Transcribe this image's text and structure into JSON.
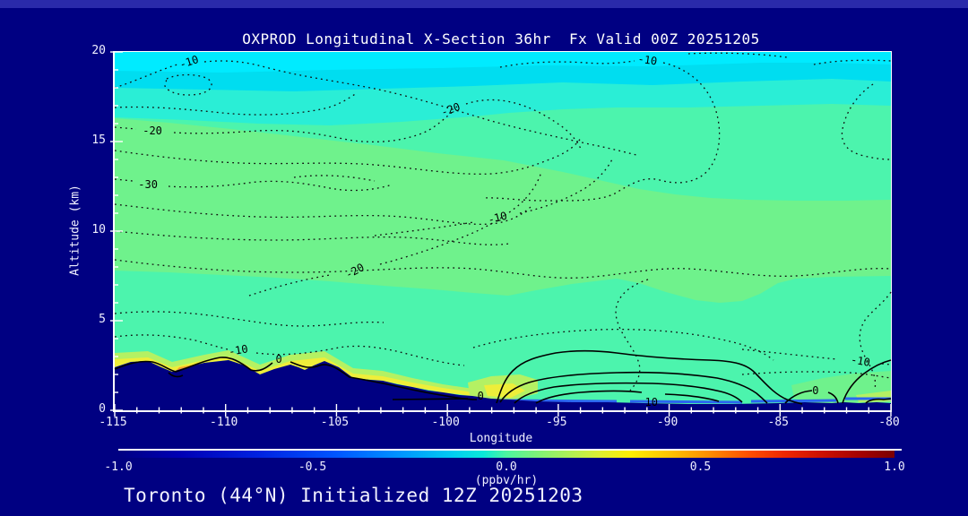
{
  "window": {
    "background": "#000082",
    "top_strip_color": "#2a2aaa"
  },
  "title": "OXPROD Longitudinal X-Section 36hr  Fx Valid 00Z 20251205",
  "annotation": "Toronto (44°N) Initialized 12Z 20251203",
  "axes": {
    "x": {
      "label": "Longitude",
      "range": [
        -115,
        -80
      ],
      "major_ticks": [
        -115,
        -110,
        -105,
        -100,
        -95,
        -90,
        -85,
        -80
      ],
      "minor_step": 1
    },
    "y": {
      "label": "Altitude (km)",
      "range": [
        0,
        20
      ],
      "major_ticks": [
        0,
        5,
        10,
        15,
        20
      ],
      "minor_step": 1
    }
  },
  "colorbar": {
    "units_label": "(ppbv/hr)",
    "range": [
      -1.0,
      1.0
    ],
    "ticks": [
      "-1.0",
      "-0.5",
      "0.0",
      "0.5",
      "1.0"
    ],
    "gradient": [
      [
        "0%",
        "#000082"
      ],
      [
        "8%",
        "#0000b4"
      ],
      [
        "18%",
        "#0022e0"
      ],
      [
        "28%",
        "#0055ff"
      ],
      [
        "36%",
        "#0092ff"
      ],
      [
        "43%",
        "#00ccf2"
      ],
      [
        "47%",
        "#09e9d9"
      ],
      [
        "50%",
        "#4cf4a0"
      ],
      [
        "54%",
        "#7ef278"
      ],
      [
        "58%",
        "#aef056"
      ],
      [
        "62%",
        "#ddee32"
      ],
      [
        "66%",
        "#ffee00"
      ],
      [
        "71%",
        "#ffc300"
      ],
      [
        "76%",
        "#ff8e00"
      ],
      [
        "81%",
        "#ff5100"
      ],
      [
        "86%",
        "#ed2600"
      ],
      [
        "91%",
        "#c90e00"
      ],
      [
        "96%",
        "#a00000"
      ],
      [
        "100%",
        "#7a0000"
      ]
    ]
  },
  "palette": {
    "navy": "#000082",
    "cyan_bright": "#00ebff",
    "cyan": "#00ddf0",
    "cyan_turquoise": "#2aeed6",
    "springgreen": "#4cf4ad",
    "green": "#6ff28c",
    "yellowgreen": "#b4f163",
    "yellow": "#eeee3a",
    "orange": "#f4a22a",
    "blue_strip": "#2b66f0",
    "contour_line": "#000000",
    "axis": "#ffffff",
    "text": "#f0f0ff"
  },
  "chart_data": {
    "type": "heatmap",
    "subtype": "filled-contour longitudinal cross-section",
    "title": "OXPROD Longitudinal X-Section 36hr  Fx Valid 00Z 20251205",
    "xlabel": "Longitude",
    "ylabel": "Altitude (km)",
    "xlim": [
      -115,
      -80
    ],
    "ylim": [
      0,
      20
    ],
    "value_units": "ppbv/hr",
    "colorbar_range": [
      -1.0,
      1.0
    ],
    "contour_levels": {
      "dotted_negative": [
        -30,
        -20,
        -10
      ],
      "solid_nonnegative": [
        0,
        10
      ]
    },
    "contour_labels": [
      {
        "value": "-10",
        "lon": -111.6,
        "km": 19.45,
        "rot": -18,
        "style": "dotted"
      },
      {
        "value": "-10",
        "lon": -91.0,
        "km": 19.55,
        "rot": 8,
        "style": "dotted"
      },
      {
        "value": "-20",
        "lon": -113.3,
        "km": 15.6,
        "rot": 0,
        "style": "dotted"
      },
      {
        "value": "-20",
        "lon": -99.8,
        "km": 16.8,
        "rot": -20,
        "style": "dotted"
      },
      {
        "value": "-30",
        "lon": -113.5,
        "km": 12.6,
        "rot": 0,
        "style": "dotted"
      },
      {
        "value": "-20",
        "lon": -104.1,
        "km": 7.8,
        "rot": -28,
        "style": "dotted"
      },
      {
        "value": "-10",
        "lon": -97.7,
        "km": 10.75,
        "rot": -15,
        "style": "dotted"
      },
      {
        "value": "-10",
        "lon": -109.4,
        "km": 3.35,
        "rot": -10,
        "style": "dotted"
      },
      {
        "value": "-10",
        "lon": -81.4,
        "km": 2.75,
        "rot": 10,
        "style": "dotted"
      },
      {
        "value": "0",
        "lon": -107.6,
        "km": 2.85,
        "rot": 0,
        "style": "solid"
      },
      {
        "value": "0",
        "lon": -98.5,
        "km": 0.8,
        "rot": 0,
        "style": "solid"
      },
      {
        "value": "0",
        "lon": -83.4,
        "km": 1.1,
        "rot": 0,
        "style": "solid"
      },
      {
        "value": "10",
        "lon": -90.8,
        "km": 0.45,
        "rot": 0,
        "style": "solid"
      }
    ],
    "terrain_profile_lon_km": [
      [
        -115,
        2.6
      ],
      [
        -113.5,
        2.75
      ],
      [
        -112.4,
        2.1
      ],
      [
        -109.9,
        2.8
      ],
      [
        -108.5,
        1.95
      ],
      [
        -107.1,
        2.55
      ],
      [
        -106.4,
        2.25
      ],
      [
        -105.5,
        2.75
      ],
      [
        -104.2,
        1.8
      ],
      [
        -102.9,
        1.65
      ],
      [
        -101.6,
        1.3
      ],
      [
        -100.2,
        1.0
      ],
      [
        -98.9,
        0.8
      ],
      [
        -97.3,
        0.6
      ],
      [
        -94.0,
        0.45
      ],
      [
        -91.8,
        0.4
      ],
      [
        -87.8,
        0.35
      ],
      [
        -84.0,
        0.45
      ],
      [
        -80.0,
        0.35
      ]
    ],
    "fill_bands_top_to_bottom": [
      {
        "color": "#00ebff",
        "approx_km": "19.0-20.0",
        "meaning": "most negative tendency aloft"
      },
      {
        "color": "#00ddf0",
        "approx_km": "18.0-19.0"
      },
      {
        "color": "#2aeed6",
        "approx_km": "16.5-18.0"
      },
      {
        "color": "#6ff28c",
        "approx_km": "7.5-14.0 sloping band"
      },
      {
        "color": "#4cf4ad",
        "approx_km": "background of lower troposphere"
      },
      {
        "color": "#b4f163 / #eeee3a / #f4a22a",
        "approx_km": "0-3 shallow layer hugging terrain (weakly positive)"
      }
    ]
  }
}
